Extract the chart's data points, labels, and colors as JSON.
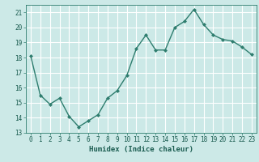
{
  "x": [
    0,
    1,
    2,
    3,
    4,
    5,
    6,
    7,
    8,
    9,
    10,
    11,
    12,
    13,
    14,
    15,
    16,
    17,
    18,
    19,
    20,
    21,
    22,
    23
  ],
  "y": [
    18.1,
    15.5,
    14.9,
    15.3,
    14.1,
    13.4,
    13.8,
    14.2,
    15.3,
    15.8,
    16.8,
    18.6,
    19.5,
    18.5,
    18.5,
    20.0,
    20.4,
    21.2,
    20.2,
    19.5,
    19.2,
    19.1,
    18.7,
    18.2
  ],
  "line_color": "#2e7d6e",
  "marker": "D",
  "markersize": 2.0,
  "bg_color": "#cce9e7",
  "grid_color": "#ffffff",
  "xlabel": "Humidex (Indice chaleur)",
  "xlim": [
    -0.5,
    23.5
  ],
  "ylim": [
    13,
    21.5
  ],
  "yticks": [
    13,
    14,
    15,
    16,
    17,
    18,
    19,
    20,
    21
  ],
  "xticks": [
    0,
    1,
    2,
    3,
    4,
    5,
    6,
    7,
    8,
    9,
    10,
    11,
    12,
    13,
    14,
    15,
    16,
    17,
    18,
    19,
    20,
    21,
    22,
    23
  ],
  "tick_color": "#2e7d6e",
  "label_color": "#1a5c50",
  "linewidth": 1.0,
  "label_fontsize": 6.5,
  "tick_fontsize": 5.5
}
